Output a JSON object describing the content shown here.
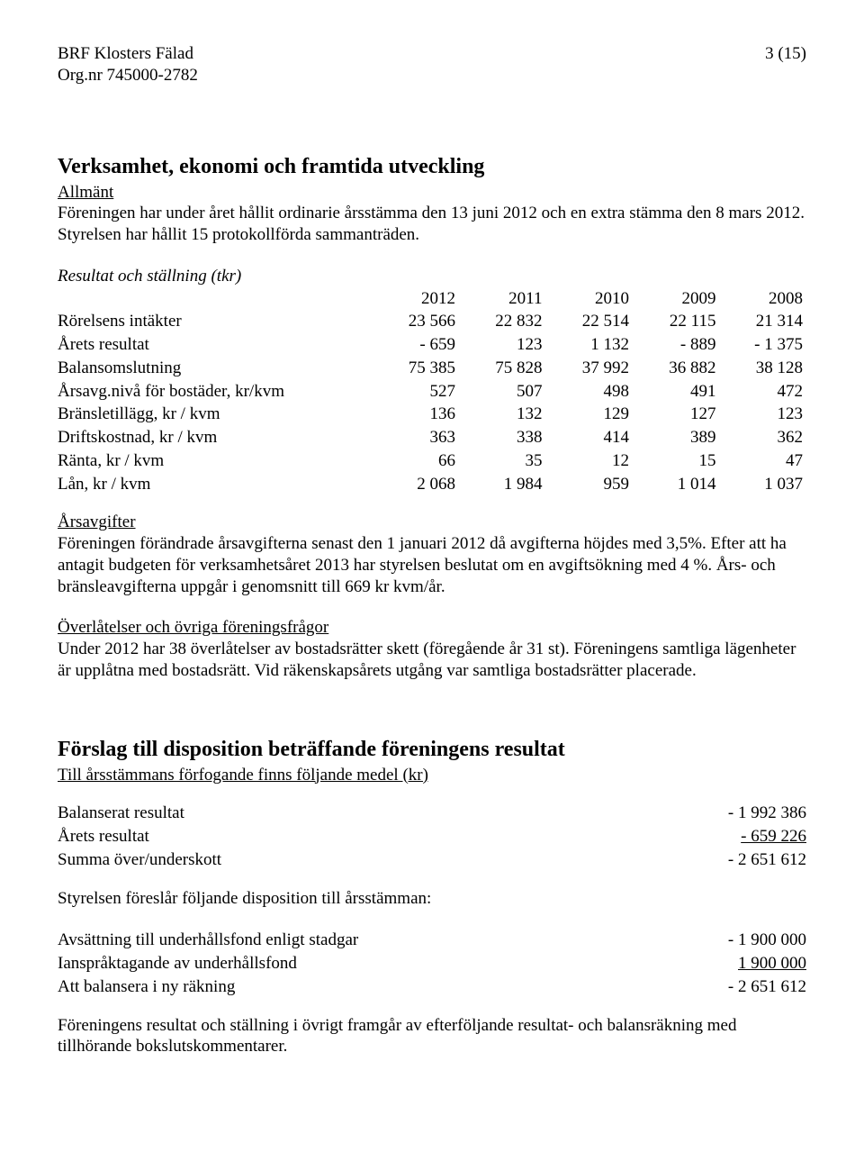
{
  "header": {
    "org_name": "BRF Klosters Fälad",
    "org_nr_label": "Org.nr 745000-2782",
    "page_number": "3 (15)"
  },
  "s1": {
    "title": "Verksamhet, ekonomi och framtida utveckling",
    "allmant_label": "Allmänt",
    "allmant_text": "Föreningen har under året hållit ordinarie årsstämma den 13 juni 2012 och en extra stämma den 8 mars 2012. Styrelsen har hållit 15 protokollförda sammanträden."
  },
  "table": {
    "caption": "Resultat och ställning (tkr)",
    "years": [
      "2012",
      "2011",
      "2010",
      "2009",
      "2008"
    ],
    "rows": [
      {
        "label": "Rörelsens intäkter",
        "cells": [
          "23 566",
          "22 832",
          "22 514",
          "22 115",
          "21 314"
        ]
      },
      {
        "label": "Årets resultat",
        "cells": [
          "- 659",
          "123",
          "1 132",
          "- 889",
          "- 1 375"
        ]
      },
      {
        "label": "Balansomslutning",
        "cells": [
          "75 385",
          "75 828",
          "37 992",
          "36 882",
          "38 128"
        ]
      },
      {
        "label": "Årsavg.nivå för bostäder, kr/kvm",
        "cells": [
          "527",
          "507",
          "498",
          "491",
          "472"
        ]
      },
      {
        "label": "Bränsletillägg, kr / kvm",
        "cells": [
          "136",
          "132",
          "129",
          "127",
          "123"
        ]
      },
      {
        "label": "Driftskostnad, kr / kvm",
        "cells": [
          "363",
          "338",
          "414",
          "389",
          "362"
        ]
      },
      {
        "label": "Ränta, kr / kvm",
        "cells": [
          "66",
          "35",
          "12",
          "15",
          "47"
        ]
      },
      {
        "label": "Lån, kr / kvm",
        "cells": [
          "2 068",
          "1 984",
          "959",
          "1 014",
          "1 037"
        ]
      }
    ]
  },
  "arsavgifter": {
    "heading": "Årsavgifter",
    "text": "Föreningen förändrade årsavgifterna senast den 1 januari 2012 då avgifterna höjdes med 3,5%. Efter att ha antagit budgeten för verksamhetsåret 2013 har styrelsen beslutat om en avgiftsökning med 4 %. Års- och bränsleavgifterna uppgår i genomsnitt till 669 kr kvm/år."
  },
  "overlatelser": {
    "heading": "Överlåtelser och övriga föreningsfrågor",
    "text": "Under 2012 har 38 överlåtelser av bostadsrätter skett (föregående år 31 st). Föreningens samtliga lägenheter är upplåtna med bostadsrätt. Vid räkenskapsårets utgång var samtliga bostadsrätter placerade."
  },
  "forslag": {
    "title": "Förslag till disposition beträffande föreningens resultat",
    "sub": "Till årsstämmans förfogande finns följande medel (kr)",
    "rows1": [
      {
        "label": "Balanserat resultat",
        "value": "- 1 992 386",
        "underline": false
      },
      {
        "label": "Årets resultat",
        "value": "-    659 226",
        "underline": true
      },
      {
        "label": "Summa över/underskott",
        "value": "- 2 651 612",
        "underline": false
      }
    ],
    "mid_text": "Styrelsen föreslår följande disposition till årsstämman:",
    "rows2": [
      {
        "label": "Avsättning till underhållsfond enligt stadgar",
        "value": "- 1 900 000",
        "underline": false
      },
      {
        "label": "Ianspråktagande av underhållsfond",
        "value": "1 900 000",
        "underline": true
      },
      {
        "label": "Att balansera i ny räkning",
        "value": "- 2 651 612",
        "underline": false
      }
    ]
  },
  "footer_text": "Föreningens resultat och ställning i övrigt framgår av efterföljande resultat- och balansräkning med tillhörande bokslutskommentarer."
}
